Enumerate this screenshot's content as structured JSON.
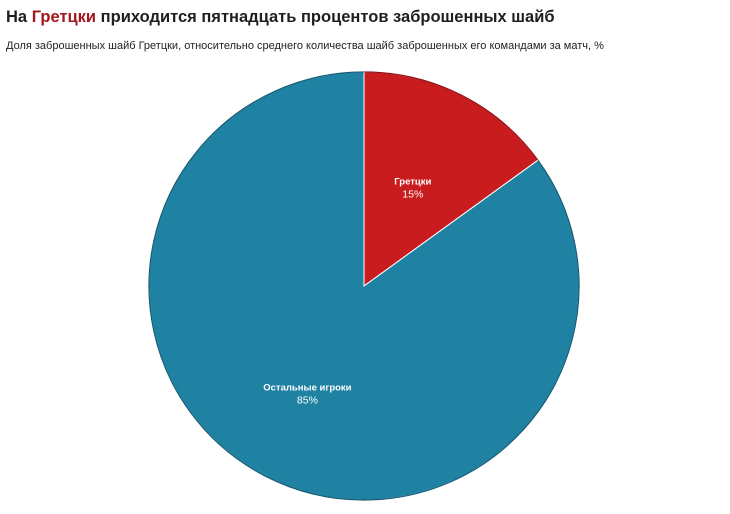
{
  "title": {
    "before": "На ",
    "highlight": "Гретцки",
    "after": " приходится пятнадцать процентов заброшенных шайб"
  },
  "subtitle": "Доля заброшенных шайб Гретцки, относительно среднего количества шайб заброшенных его командами за матч, %",
  "colors": {
    "highlight": "#a3161b",
    "gretzky": "#c91c1f",
    "others": "#1f82a2",
    "others_outline": "#145a73",
    "gretzky_outline": "#8f1114"
  },
  "chart_data": {
    "type": "pie",
    "title": "",
    "start_angle_deg": 0,
    "direction": "clockwise",
    "slices": [
      {
        "label": "Гретцки",
        "value": 15,
        "value_label": "15%",
        "color": "#c91c1f"
      },
      {
        "label": "Остальные игроки",
        "value": 85,
        "value_label": "85%",
        "color": "#1f82a2"
      }
    ]
  }
}
